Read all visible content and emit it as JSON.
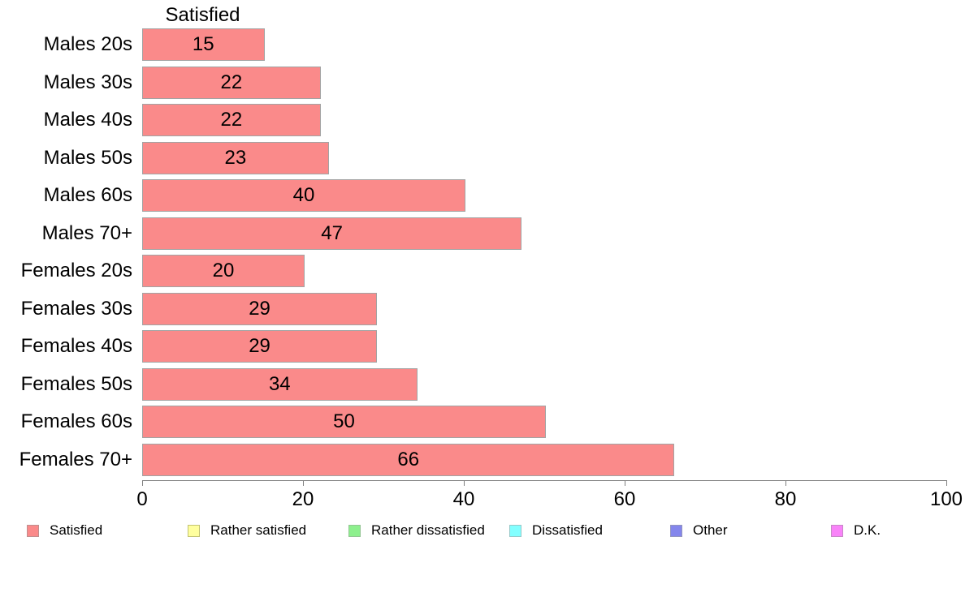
{
  "chart_data": {
    "type": "bar",
    "orientation": "horizontal",
    "title": "Satisfied",
    "categories": [
      "Males 20s",
      "Males 30s",
      "Males 40s",
      "Males 50s",
      "Males 60s",
      "Males 70+",
      "Females 20s",
      "Females 30s",
      "Females 40s",
      "Females 50s",
      "Females 60s",
      "Females 70+"
    ],
    "values": [
      15,
      22,
      22,
      23,
      40,
      47,
      20,
      29,
      29,
      34,
      50,
      66
    ],
    "xlabel": "",
    "ylabel": "",
    "xlim": [
      0,
      100
    ],
    "x_ticks": [
      0,
      20,
      40,
      60,
      80,
      100
    ],
    "grid": false,
    "bar_color": "#FA8A8A",
    "bar_border_color": "#A3A3A3",
    "axis_color": "#808080",
    "legend_position": "bottom",
    "legend": [
      {
        "label": "Satisfied",
        "color": "#FA8A8A",
        "border": "#C08E8E"
      },
      {
        "label": "Rather satisfied",
        "color": "#FFFF9E",
        "border": "#C2C272"
      },
      {
        "label": "Rather dissatisfied",
        "color": "#8DF08D",
        "border": "#93C493"
      },
      {
        "label": "Dissatisfied",
        "color": "#82FFFF",
        "border": "#96C8C8"
      },
      {
        "label": "Other",
        "color": "#8486EC",
        "border": "#9496BE"
      },
      {
        "label": "D.K.",
        "color": "#F983F9",
        "border": "#C689C6"
      }
    ]
  }
}
